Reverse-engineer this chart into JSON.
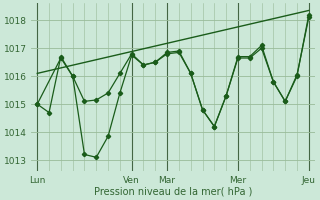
{
  "xlabel": "Pression niveau de la mer( hPa )",
  "background_color": "#cce8d8",
  "line_color": "#1a5c1a",
  "grid_color": "#99bb99",
  "text_color": "#336633",
  "ylim": [
    1012.6,
    1018.6
  ],
  "yticks": [
    1013,
    1014,
    1015,
    1016,
    1017,
    1018
  ],
  "xtick_labels": [
    "Lun",
    "Ven",
    "Mar",
    "Mer",
    "Jeu"
  ],
  "xtick_positions": [
    0,
    8,
    11,
    17,
    23
  ],
  "vline_positions": [
    0,
    8,
    11,
    17,
    23
  ],
  "series1_x": [
    0,
    1,
    2,
    3,
    4,
    5,
    6,
    7,
    8,
    9,
    10,
    11,
    12,
    13,
    14,
    15,
    16,
    17,
    18,
    19,
    20,
    21,
    22,
    23
  ],
  "series1_y": [
    1015.0,
    1014.7,
    1016.7,
    1016.0,
    1015.1,
    1015.15,
    1015.4,
    1016.1,
    1016.8,
    1016.4,
    1016.5,
    1016.85,
    1016.9,
    1016.1,
    1014.8,
    1014.2,
    1015.3,
    1016.7,
    1016.7,
    1017.1,
    1015.8,
    1015.1,
    1016.0,
    1018.2
  ],
  "series2_x": [
    0,
    2,
    3,
    4,
    5,
    6,
    7,
    8,
    9,
    10,
    11,
    12,
    13,
    14,
    15,
    16,
    17,
    18,
    19,
    20,
    21,
    22,
    23
  ],
  "series2_y": [
    1015.0,
    1016.65,
    1016.0,
    1013.2,
    1013.1,
    1013.85,
    1015.4,
    1016.75,
    1016.4,
    1016.5,
    1016.8,
    1016.85,
    1016.1,
    1014.8,
    1014.2,
    1015.3,
    1016.65,
    1016.65,
    1017.0,
    1015.8,
    1015.1,
    1016.05,
    1018.1
  ],
  "trend_x": [
    0,
    23
  ],
  "trend_y": [
    1016.1,
    1018.35
  ]
}
